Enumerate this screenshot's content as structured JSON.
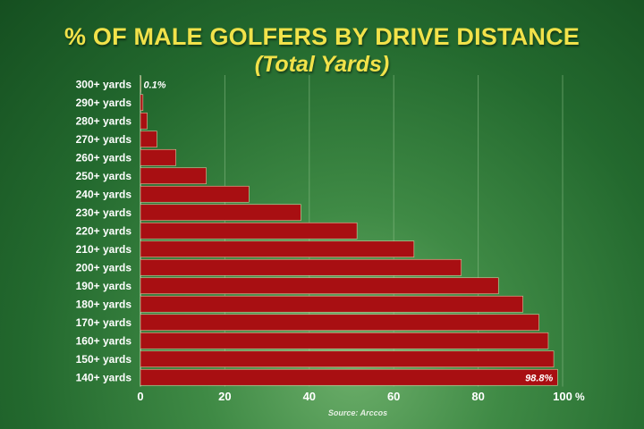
{
  "chart_data": {
    "type": "bar",
    "orientation": "horizontal",
    "title": "% OF MALE GOLFERS BY DRIVE DISTANCE",
    "subtitle": "(Total Yards)",
    "categories": [
      "300+ yards",
      "290+ yards",
      "280+ yards",
      "270+ yards",
      "260+ yards",
      "250+ yards",
      "240+ yards",
      "230+ yards",
      "220+ yards",
      "210+ yards",
      "200+ yards",
      "190+ yards",
      "180+ yards",
      "170+ yards",
      "160+ yards",
      "150+ yards",
      "140+ yards"
    ],
    "values": [
      0.1,
      0.6,
      1.6,
      3.9,
      8.4,
      15.6,
      25.7,
      38.0,
      51.3,
      64.8,
      76.0,
      84.8,
      90.6,
      94.4,
      96.6,
      97.9,
      98.8
    ],
    "data_labels": {
      "0": "0.1%",
      "16": "98.8%"
    },
    "xlim": [
      0,
      100
    ],
    "xticks": [
      "0",
      "20",
      "40",
      "60",
      "80",
      "100"
    ],
    "x_unit": "%",
    "source": "Source: Arccos",
    "grid": "vertical",
    "colors": {
      "bar": "#a80f12",
      "bar_edge": "#d8c9a0",
      "title": "#f1e24a",
      "axis_text": "#ffffff",
      "grid": "#8fc08b"
    }
  }
}
